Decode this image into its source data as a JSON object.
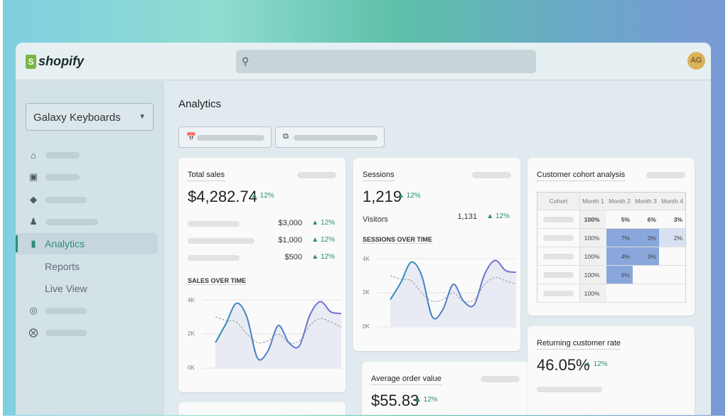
{
  "app": {
    "brand": "shopify",
    "avatar_initials": "AG",
    "accent": "#2a8f78"
  },
  "sidebar": {
    "store": "Galaxy Keyboards",
    "icons": [
      "home-icon",
      "inbox-icon",
      "tag-icon",
      "person-icon",
      "chart-bar-icon",
      "target-icon",
      "discount-icon"
    ],
    "active": "Analytics",
    "subitems": [
      "Reports",
      "Live View"
    ]
  },
  "page": {
    "title": "Analytics"
  },
  "total_sales": {
    "title": "Total sales",
    "value": "$4,282.74",
    "change": "▲ 12%",
    "rows": [
      {
        "value": "$3,000",
        "change": "▲ 12%"
      },
      {
        "value": "$1,000",
        "change": "▲ 12%"
      },
      {
        "value": "$500",
        "change": "▲ 12%"
      }
    ],
    "chart_title": "SALES OVER TIME",
    "y_ticks": [
      "4K",
      "2K",
      "0K"
    ],
    "series_current": [
      1.5,
      2.6,
      3.8,
      3.0,
      0.6,
      1.0,
      2.5,
      1.5,
      1.3,
      3.1,
      3.9,
      3.3,
      3.2
    ],
    "series_previous": [
      3.0,
      2.8,
      2.7,
      2.0,
      1.5,
      1.6,
      2.0,
      1.5,
      1.6,
      2.5,
      2.9,
      2.7,
      2.4
    ]
  },
  "sessions": {
    "title": "Sessions",
    "value": "1,219",
    "change": "▲ 12%",
    "visitors_label": "Visitors",
    "visitors_value": "1,131",
    "visitors_change": "▲ 12%",
    "chart_title": "SESSIONS OVER TIME",
    "y_ticks": [
      "4K",
      "2K",
      "0K"
    ],
    "series_current": [
      1.6,
      2.6,
      3.8,
      3.0,
      0.6,
      1.0,
      2.5,
      1.5,
      1.3,
      3.1,
      3.9,
      3.3,
      3.2
    ],
    "series_previous": [
      3.0,
      2.8,
      2.7,
      2.0,
      1.5,
      1.6,
      2.0,
      1.5,
      1.6,
      2.5,
      2.9,
      2.7,
      2.5
    ]
  },
  "aov": {
    "title": "Average order value",
    "value": "$55.83",
    "change": "▲ 12%"
  },
  "cohort": {
    "title": "Customer cohort analysis",
    "headers": [
      "Cohort",
      "Month 1",
      "Month 2",
      "Month 3",
      "Month 4"
    ],
    "rows": [
      [
        "100%",
        "5%",
        "6%",
        "3%"
      ],
      [
        "100%",
        "7%",
        "3%",
        "2%"
      ],
      [
        "100%",
        "4%",
        "3%",
        ""
      ],
      [
        "100%",
        "6%",
        "",
        ""
      ],
      [
        "100%",
        "",
        "",
        ""
      ]
    ]
  },
  "returning": {
    "title": "Returning customer rate",
    "value": "46.05%",
    "change": "▲ 12%"
  }
}
